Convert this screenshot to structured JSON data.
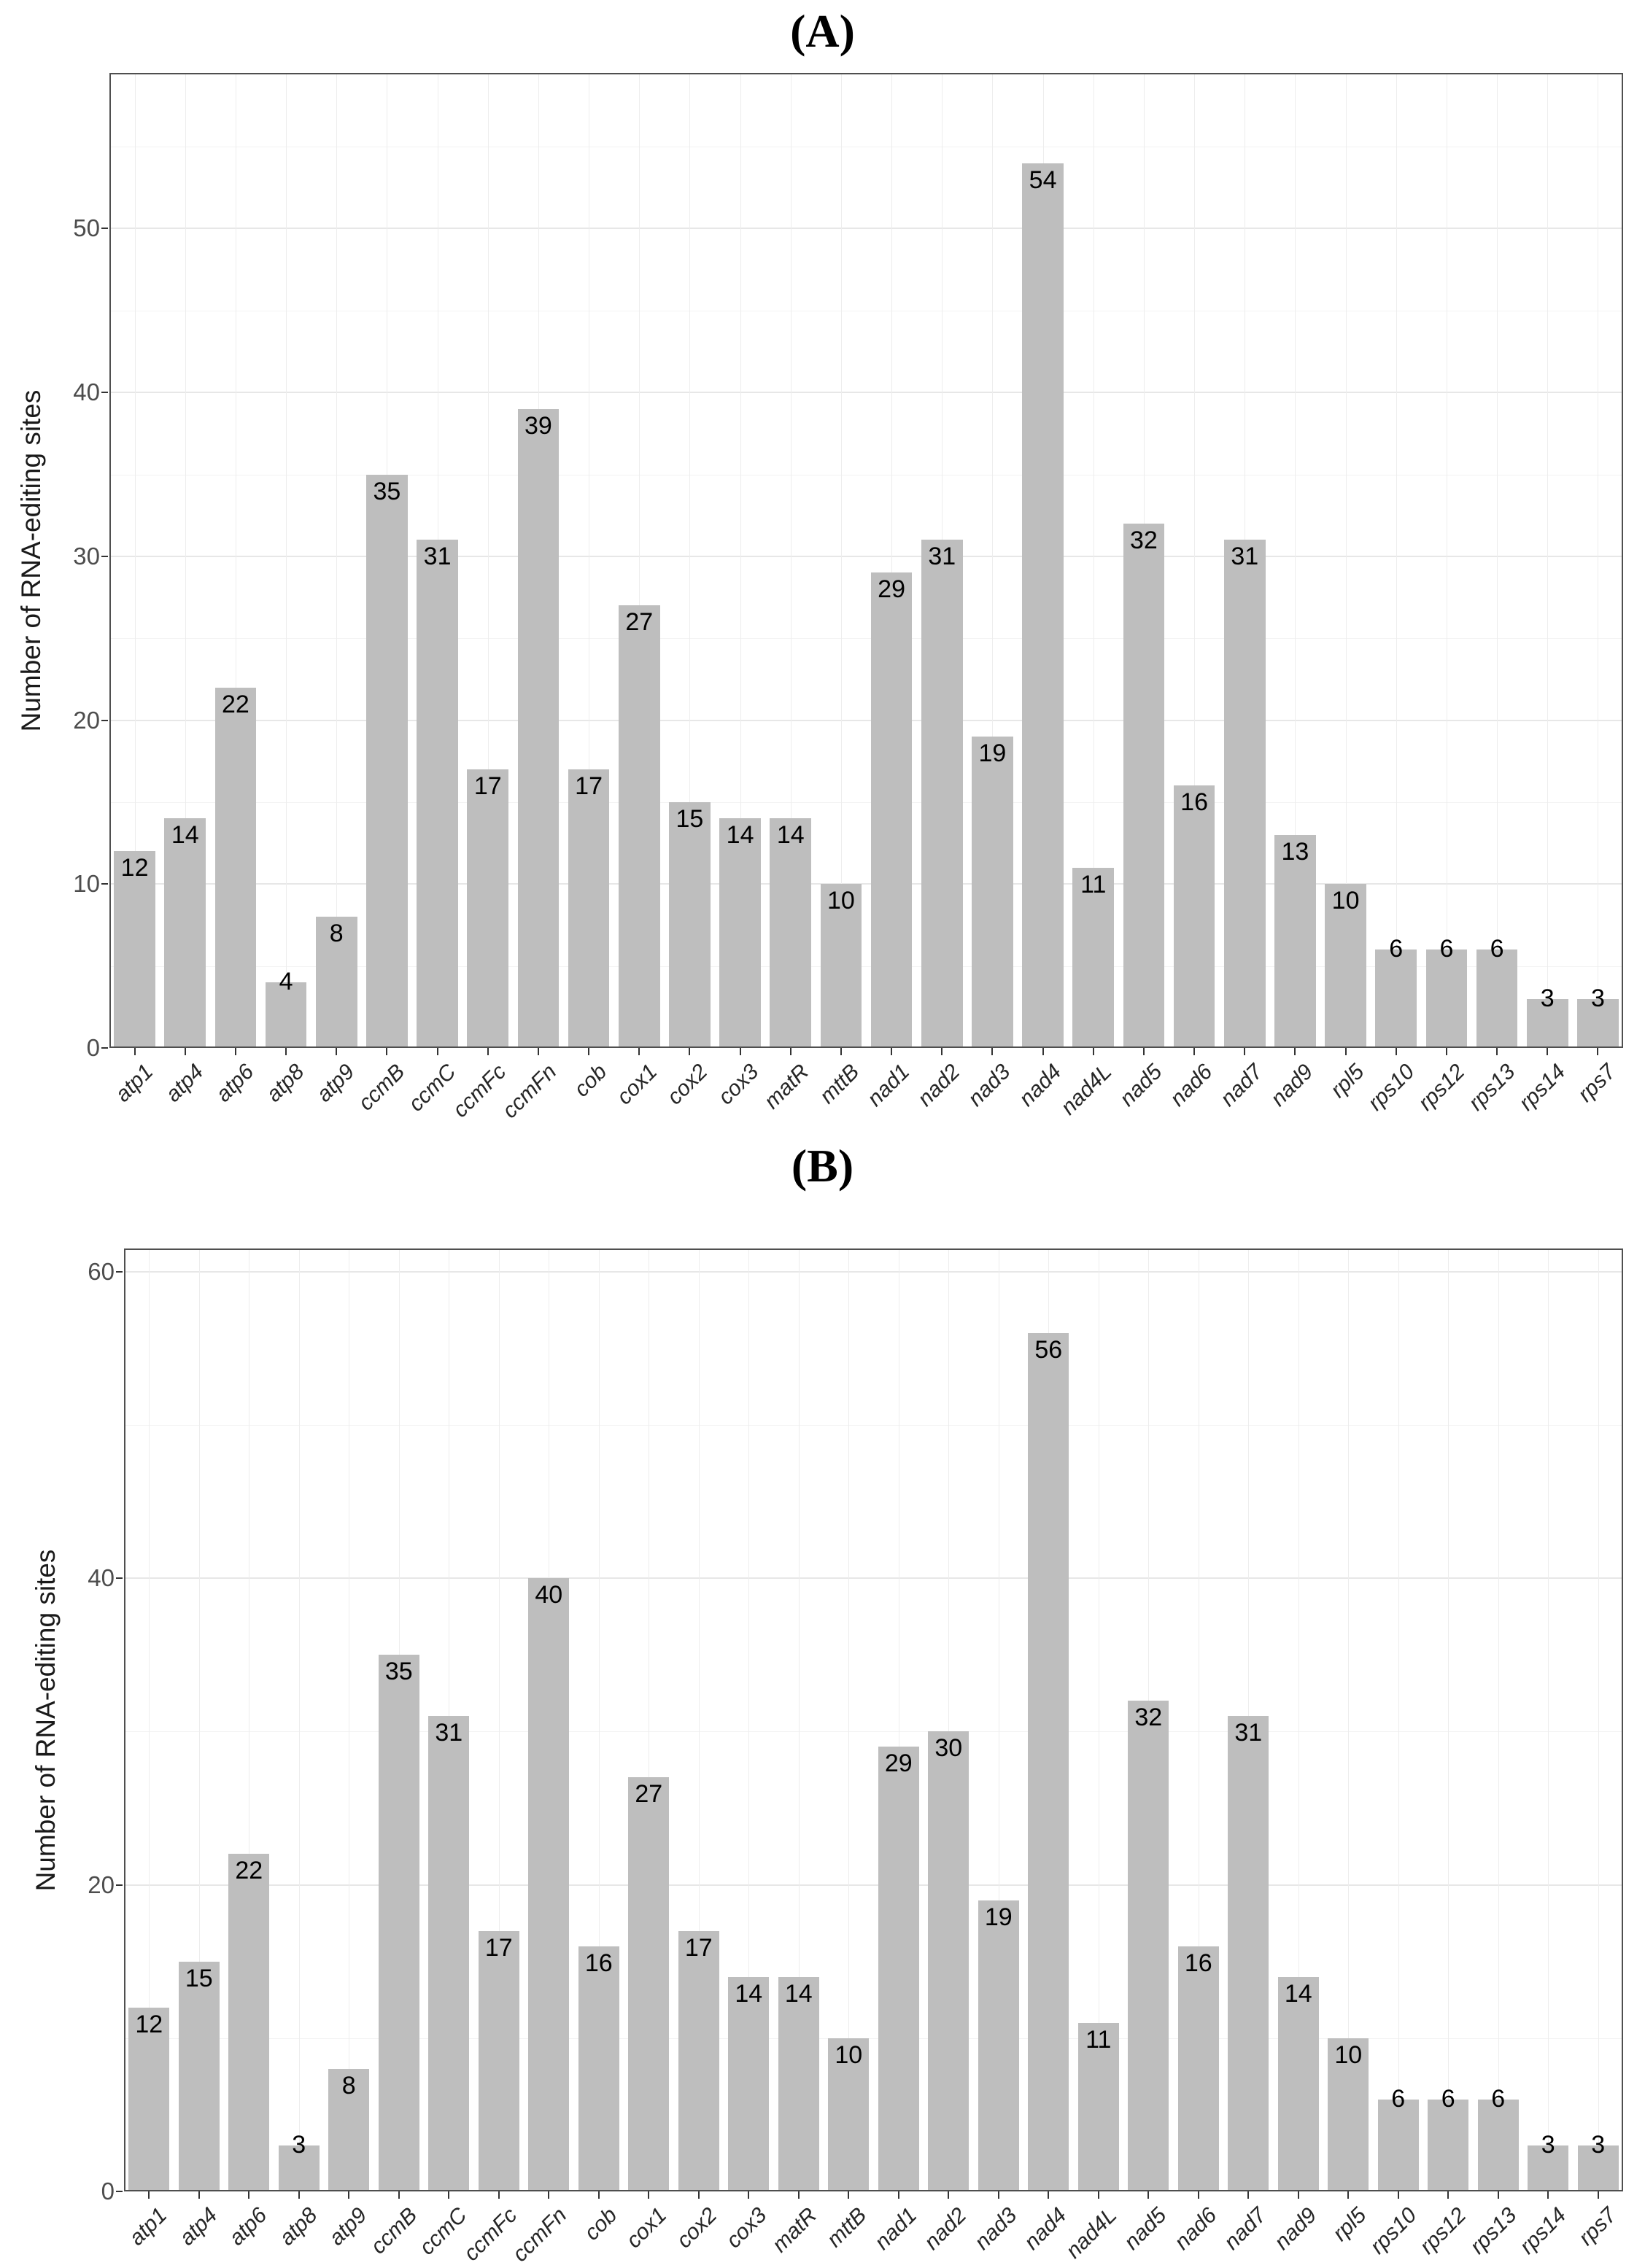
{
  "figure": {
    "background_color": "#ffffff",
    "bar_color": "#bebebe",
    "panel_border_color": "#4f4f4f",
    "grid_major_color": "#e7e7e7",
    "grid_minor_color": "#f3f3f3",
    "axis_text_color": "#4d4d4d"
  },
  "chart_data": [
    {
      "type": "bar",
      "title": "(A)",
      "ylabel": "Number of RNA-editing sites",
      "xlabel": "",
      "grid": true,
      "legend": "none",
      "bar_color": "#bebebe",
      "ylim": [
        0,
        59.5
      ],
      "yticks_major": [
        0,
        10,
        20,
        30,
        40,
        50
      ],
      "yticks_minor": [
        5,
        15,
        25,
        35,
        45,
        55
      ],
      "categories": [
        "atp1",
        "atp4",
        "atp6",
        "atp8",
        "atp9",
        "ccmB",
        "ccmC",
        "ccmFc",
        "ccmFn",
        "cob",
        "cox1",
        "cox2",
        "cox3",
        "matR",
        "mttB",
        "nad1",
        "nad2",
        "nad3",
        "nad4",
        "nad4L",
        "nad5",
        "nad6",
        "nad7",
        "nad9",
        "rpl5",
        "rps10",
        "rps12",
        "rps13",
        "rps14",
        "rps7"
      ],
      "values": [
        12,
        14,
        22,
        4,
        8,
        35,
        31,
        17,
        39,
        17,
        27,
        15,
        14,
        14,
        10,
        29,
        31,
        19,
        54,
        11,
        32,
        16,
        31,
        13,
        10,
        6,
        6,
        6,
        3,
        3
      ]
    },
    {
      "type": "bar",
      "title": "(B)",
      "ylabel": "Number of RNA-editing sites",
      "xlabel": "",
      "grid": true,
      "legend": "none",
      "bar_color": "#bebebe",
      "ylim": [
        0,
        61.5
      ],
      "yticks_major": [
        0,
        20,
        40,
        60
      ],
      "yticks_minor": [
        10,
        30,
        50
      ],
      "categories": [
        "atp1",
        "atp4",
        "atp6",
        "atp8",
        "atp9",
        "ccmB",
        "ccmC",
        "ccmFc",
        "ccmFn",
        "cob",
        "cox1",
        "cox2",
        "cox3",
        "matR",
        "mttB",
        "nad1",
        "nad2",
        "nad3",
        "nad4",
        "nad4L",
        "nad5",
        "nad6",
        "nad7",
        "nad9",
        "rpl5",
        "rps10",
        "rps12",
        "rps13",
        "rps14",
        "rps7"
      ],
      "values": [
        12,
        15,
        22,
        3,
        8,
        35,
        31,
        17,
        40,
        16,
        27,
        17,
        14,
        14,
        10,
        29,
        30,
        19,
        56,
        11,
        32,
        16,
        31,
        14,
        10,
        6,
        6,
        6,
        3,
        3
      ]
    }
  ]
}
